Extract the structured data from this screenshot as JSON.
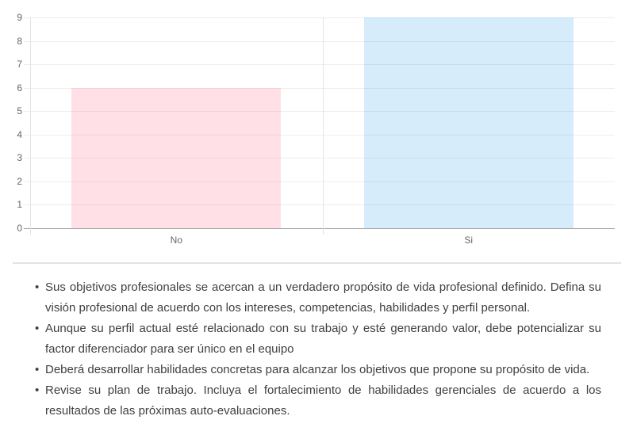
{
  "chart_data": {
    "type": "bar",
    "categories": [
      "No",
      "Si"
    ],
    "values": [
      6,
      9
    ],
    "bar_colors": [
      "rgba(255,99,132,0.2)",
      "rgba(54,162,235,0.2)"
    ],
    "title": "",
    "xlabel": "",
    "ylabel": "",
    "ylim": [
      0,
      9
    ],
    "yticks": [
      0,
      1,
      2,
      3,
      4,
      5,
      6,
      7,
      8,
      9
    ],
    "grid": true,
    "legend": "none",
    "grid_color": "#ededed",
    "axis_color": "#a6a6a6",
    "tick_label_color": "#666666"
  },
  "recommendations": {
    "items": [
      "Sus objetivos profesionales se acercan a un verdadero propósito de vida profesional definido. Defina su visión profesional de acuerdo con los intereses, competencias, habilidades y perfil personal.",
      "Aunque su perfil actual esté relacionado con su trabajo y esté generando valor, debe potencializar su factor diferenciador para ser único en el equipo",
      "Deberá desarrollar habilidades concretas para alcanzar los objetivos que propone su propósito de vida.",
      "Revise su plan de trabajo. Incluya el fortalecimiento de habilidades gerenciales de acuerdo a los resultados de las próximas auto-evaluaciones."
    ]
  }
}
